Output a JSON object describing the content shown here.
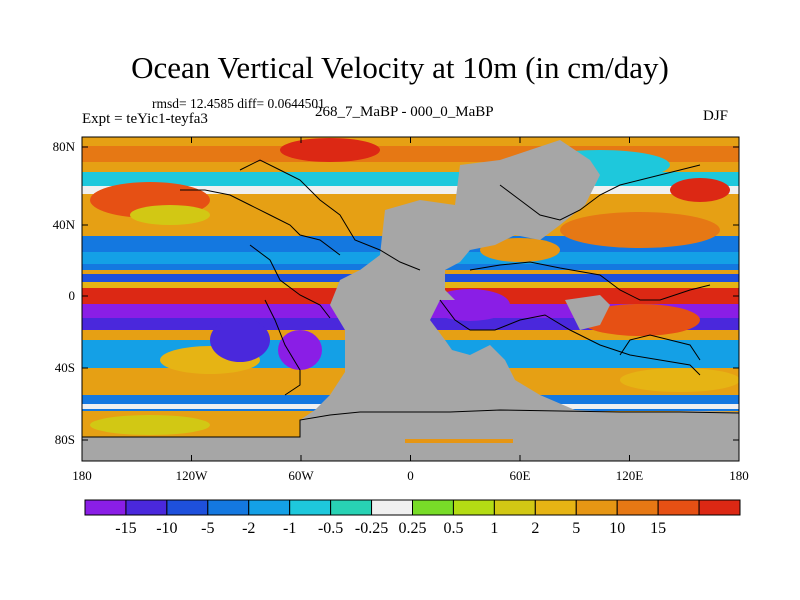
{
  "title": "Ocean Vertical Velocity at 10m (in cm/day)",
  "stats": "rmsd= 12.4585 diff= 0.0644501",
  "experiment": "Expt = teYic1-teyfa3",
  "period": "268_7_MaBP - 000_0_MaBP",
  "season": "DJF",
  "map": {
    "land_color": "#a6a6a6",
    "x_ticks": [
      "180",
      "120W",
      "60W",
      "0",
      "60E",
      "120E",
      "180"
    ],
    "y_ticks": [
      "80N",
      "40N",
      "0",
      "40S",
      "80S"
    ]
  },
  "colorbar": {
    "colors": [
      "#8a1ee6",
      "#4a28dc",
      "#1e50dc",
      "#1478e0",
      "#14a0e6",
      "#1ec8dc",
      "#28d2b4",
      "#f0f0f0",
      "#78dc28",
      "#b4dc14",
      "#d2c814",
      "#e6b414",
      "#e69614",
      "#e67814",
      "#e65014",
      "#dc2814"
    ],
    "labels": [
      "-15",
      "-10",
      "-5",
      "-2",
      "-1",
      "-0.5",
      "-0.25",
      "0.25",
      "0.5",
      "1",
      "2",
      "5",
      "10",
      "15"
    ]
  }
}
